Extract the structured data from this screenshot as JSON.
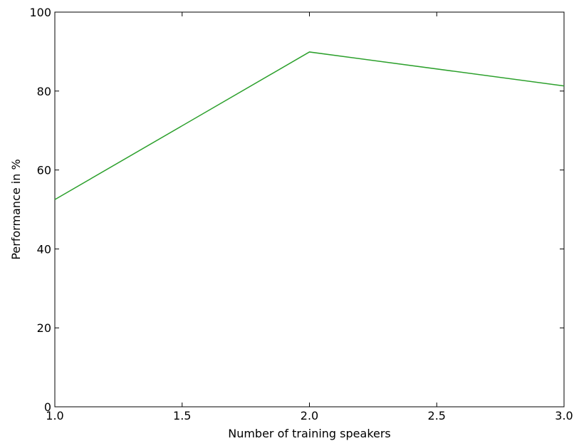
{
  "chart_data": {
    "type": "line",
    "x": [
      1.0,
      2.0,
      3.0
    ],
    "series": [
      {
        "values": [
          52.5,
          89.9,
          81.3
        ],
        "color": "#2ca02c"
      }
    ],
    "xlabel": "Number of training speakers",
    "ylabel": "Performance in %",
    "xlim": [
      1.0,
      3.0
    ],
    "ylim": [
      0,
      100
    ],
    "xticks": [
      "1.0",
      "1.5",
      "2.0",
      "2.5",
      "3.0"
    ],
    "yticks": [
      "0",
      "20",
      "40",
      "60",
      "80",
      "100"
    ],
    "grid": false
  }
}
